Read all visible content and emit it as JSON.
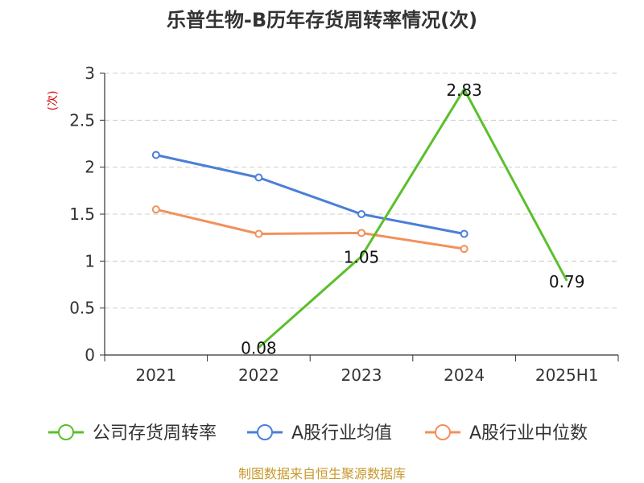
{
  "chart_data": {
    "type": "line",
    "title": "乐普生物-B历年存货周转率情况(次)",
    "ylabel": "(次)",
    "xlabel": "",
    "categories": [
      "2021",
      "2022",
      "2023",
      "2024",
      "2025H1"
    ],
    "ylim": [
      0,
      3
    ],
    "yticks": [
      "0",
      "0.5",
      "1",
      "1.5",
      "2",
      "2.5",
      "3"
    ],
    "grid": true,
    "legend_position": "bottom",
    "series": [
      {
        "name": "公司存货周转率",
        "color": "#5bbf2b",
        "values": [
          null,
          0.08,
          1.05,
          2.83,
          0.79
        ],
        "labels": [
          null,
          "0.08",
          "1.05",
          "2.83",
          "0.79"
        ],
        "show_markers": false
      },
      {
        "name": "A股行业均值",
        "color": "#4a7fd8",
        "values": [
          2.13,
          1.89,
          1.5,
          1.29,
          null
        ],
        "show_markers": true
      },
      {
        "name": "A股行业中位数",
        "color": "#f2915b",
        "values": [
          1.55,
          1.29,
          1.3,
          1.13,
          null
        ],
        "show_markers": true
      }
    ]
  },
  "source": "制图数据来自恒生聚源数据库"
}
